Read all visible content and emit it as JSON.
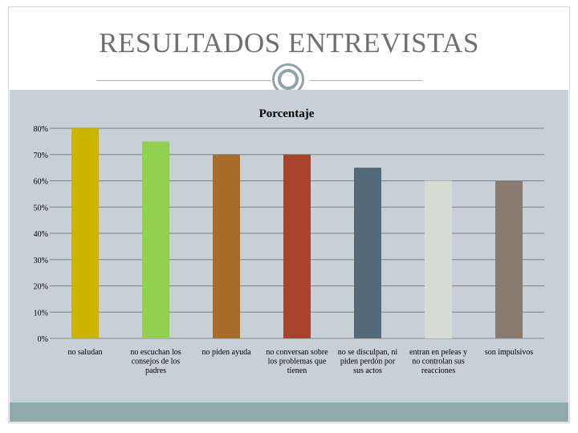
{
  "slide": {
    "title": "RESULTADOS ENTREVISTAS"
  },
  "chart_data": {
    "type": "bar",
    "title": "Porcentaje",
    "xlabel": "",
    "ylabel": "",
    "ylim": [
      0,
      80
    ],
    "yticks": [
      0,
      10,
      20,
      30,
      40,
      50,
      60,
      70,
      80
    ],
    "ytick_labels": [
      "0%",
      "10%",
      "20%",
      "30%",
      "40%",
      "50%",
      "60%",
      "70%",
      "80%"
    ],
    "grid": true,
    "legend": "none",
    "categories": [
      "no saludan",
      "no escuchan los consejos de los padres",
      "no piden ayuda",
      "no conversan sobre los problemas que tienen",
      "no se disculpan, ni piden perdón por sus actos",
      "entran en peleas y no controlan sus reacciones",
      "son impulsivos"
    ],
    "category_lines": [
      [
        "no saludan"
      ],
      [
        "no escuchan los",
        "consejos de los",
        "padres"
      ],
      [
        "no piden ayuda"
      ],
      [
        "no conversan sobre",
        "los problemas que",
        "tienen"
      ],
      [
        "no se disculpan, ni",
        "piden perdón por",
        "sus actos"
      ],
      [
        "entran en peleas y",
        "no controlan sus",
        "reacciones"
      ],
      [
        "son impulsivos"
      ]
    ],
    "values": [
      80,
      75,
      70,
      70,
      65,
      60,
      60
    ],
    "colors": [
      "#cdb400",
      "#92d050",
      "#a86d2a",
      "#a8432c",
      "#526a7a",
      "#d6ddd4",
      "#8b7a6e"
    ]
  }
}
